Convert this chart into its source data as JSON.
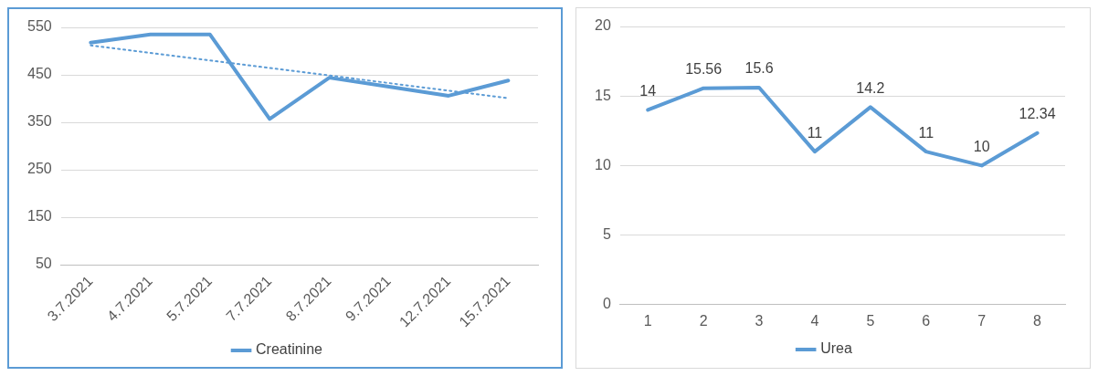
{
  "chart_data": [
    {
      "type": "line",
      "categories": [
        "3.7.2021",
        "4.7.2021",
        "5.7.2021",
        "7.7.2021",
        "8.7.2021",
        "9.7.2021",
        "12.7.2021",
        "15.7.2021"
      ],
      "series": [
        {
          "name": "Creatinine",
          "color": "#5b9bd5",
          "values": [
            518,
            535,
            535,
            357,
            444,
            425,
            406,
            438
          ]
        },
        {
          "type": "line",
          "color": "#5b9bd5",
          "line_style": "dotted",
          "x": [
            "3.7.2021",
            "15.7.2021"
          ],
          "values": [
            512,
            401
          ]
        }
      ],
      "ylim": [
        50,
        550
      ],
      "yticks": [
        50,
        150,
        250,
        350,
        450,
        550
      ],
      "grid": "y",
      "legend": "bottom",
      "marker": "none",
      "line_style": "solid"
    },
    {
      "type": "line",
      "categories": [
        "1",
        "2",
        "3",
        "4",
        "5",
        "6",
        "7",
        "8"
      ],
      "series": [
        {
          "name": "Urea",
          "color": "#5b9bd5",
          "values": [
            14,
            15.56,
            15.6,
            11,
            14.2,
            11,
            10,
            12.34
          ]
        }
      ],
      "ylim": [
        0,
        20
      ],
      "yticks": [
        0,
        5,
        10,
        15,
        20
      ],
      "grid": "y",
      "legend": "bottom",
      "marker": "none",
      "line_style": "solid",
      "data_labels": true
    }
  ]
}
